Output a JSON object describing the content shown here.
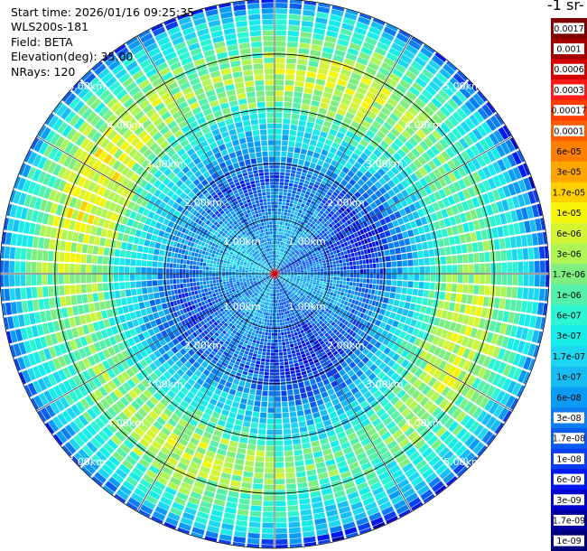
{
  "header": {
    "start_time": "Start time: 2026/01/16 09:25:35",
    "instrument": "WLS200s-181",
    "field": "Field: BETA",
    "elevation": "Elevation(deg): 35.00",
    "nrays": "NRays: 120"
  },
  "colorbar": {
    "title": "-1 sr-",
    "ticks": [
      {
        "label": "0.0017",
        "color": "#7f0000"
      },
      {
        "label": "0.001",
        "color": "#a50000"
      },
      {
        "label": "0.0006",
        "color": "#d40000"
      },
      {
        "label": "0.0003",
        "color": "#ff1a1a"
      },
      {
        "label": "0.00017",
        "color": "#ff3d00"
      },
      {
        "label": "0.0001",
        "color": "#ff5e00"
      },
      {
        "label": "6e-05",
        "color": "#ff8000"
      },
      {
        "label": "3e-05",
        "color": "#ffa500"
      },
      {
        "label": "1.7e-05",
        "color": "#ffd000"
      },
      {
        "label": "1e-05",
        "color": "#f5f50a"
      },
      {
        "label": "6e-06",
        "color": "#d5f534"
      },
      {
        "label": "3e-06",
        "color": "#aef555"
      },
      {
        "label": "1.7e-06",
        "color": "#7fee80"
      },
      {
        "label": "1e-06",
        "color": "#55f0aa"
      },
      {
        "label": "6e-07",
        "color": "#2cf5d4"
      },
      {
        "label": "3e-07",
        "color": "#18ece8"
      },
      {
        "label": "1.7e-07",
        "color": "#1ed6f0"
      },
      {
        "label": "1e-07",
        "color": "#16bcf2"
      },
      {
        "label": "6e-08",
        "color": "#0a9cf5"
      },
      {
        "label": "3e-08",
        "color": "#0a7ef2"
      },
      {
        "label": "1.7e-08",
        "color": "#0a5cf0"
      },
      {
        "label": "1e-08",
        "color": "#0a3cf0"
      },
      {
        "label": "6e-09",
        "color": "#0018f0"
      },
      {
        "label": "3e-09",
        "color": "#0000d0"
      },
      {
        "label": "1.7e-09",
        "color": "#0000a0"
      },
      {
        "label": "1e-09",
        "color": "#00007a"
      }
    ]
  },
  "chart_data": {
    "type": "heatmap",
    "projection": "polar (PPI scan)",
    "field": "BETA",
    "nrays": 120,
    "elevation_deg": 35.0,
    "max_range_km": 5.0,
    "range_rings_km": [
      1.0,
      2.0,
      3.0,
      4.0,
      5.0
    ],
    "ring_labels": [
      "1.00km",
      "2.00km",
      "3.00km",
      "4.00km",
      "5.00km"
    ],
    "spoke_count": 12,
    "color_scale": "log",
    "value_range": [
      1e-09,
      0.0017
    ],
    "radial_profile": [
      {
        "range_km": 0.25,
        "beta": 6e-08
      },
      {
        "range_km": 0.75,
        "beta": 5e-08
      },
      {
        "range_km": 1.25,
        "beta": 3e-08
      },
      {
        "range_km": 1.75,
        "beta": 1.5e-08
      },
      {
        "range_km": 2.25,
        "beta": 6e-08
      },
      {
        "range_km": 2.75,
        "beta": 3e-07
      },
      {
        "range_km": 3.25,
        "beta": 2e-06
      },
      {
        "range_km": 3.75,
        "beta": 3e-06
      },
      {
        "range_km": 4.25,
        "beta": 1e-06
      },
      {
        "range_km": 4.75,
        "beta": 2e-07
      },
      {
        "range_km": 5.0,
        "beta": 1e-08
      }
    ]
  }
}
